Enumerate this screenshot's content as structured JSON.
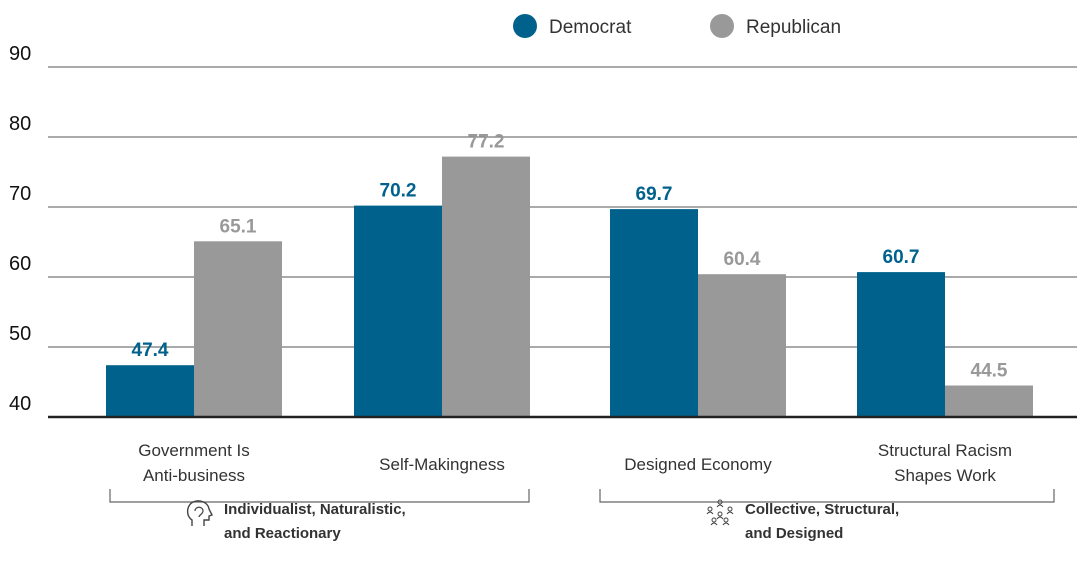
{
  "chart_data": {
    "type": "bar",
    "categories": [
      [
        "Government Is",
        "Anti-business"
      ],
      [
        "Self-Makingness"
      ],
      [
        "Designed Economy"
      ],
      [
        "Structural Racism",
        "Shapes Work"
      ]
    ],
    "series": [
      {
        "name": "Democrat",
        "color": "#00628c",
        "values": [
          47.4,
          70.2,
          69.7,
          60.7
        ],
        "labels": [
          "47.4",
          "70.2",
          "69.7",
          "60.7"
        ]
      },
      {
        "name": "Republican",
        "color": "#999999",
        "values": [
          65.1,
          77.2,
          60.4,
          44.5
        ],
        "labels": [
          "65.1",
          "77.2",
          "60.4",
          "44.5"
        ]
      }
    ],
    "ylim": [
      40,
      90
    ],
    "yticks": [
      "40",
      "50",
      "60",
      "70",
      "80",
      "90"
    ],
    "grid": true,
    "legend": "top-center",
    "groups": [
      {
        "lines": [
          "Individualist, Naturalistic,",
          "and Reactionary"
        ],
        "icon": "head-profile-icon",
        "categories": [
          0,
          1
        ]
      },
      {
        "lines": [
          "Collective, Structural,",
          "and Designed"
        ],
        "icon": "people-circle-icon",
        "categories": [
          2,
          3
        ]
      }
    ]
  }
}
